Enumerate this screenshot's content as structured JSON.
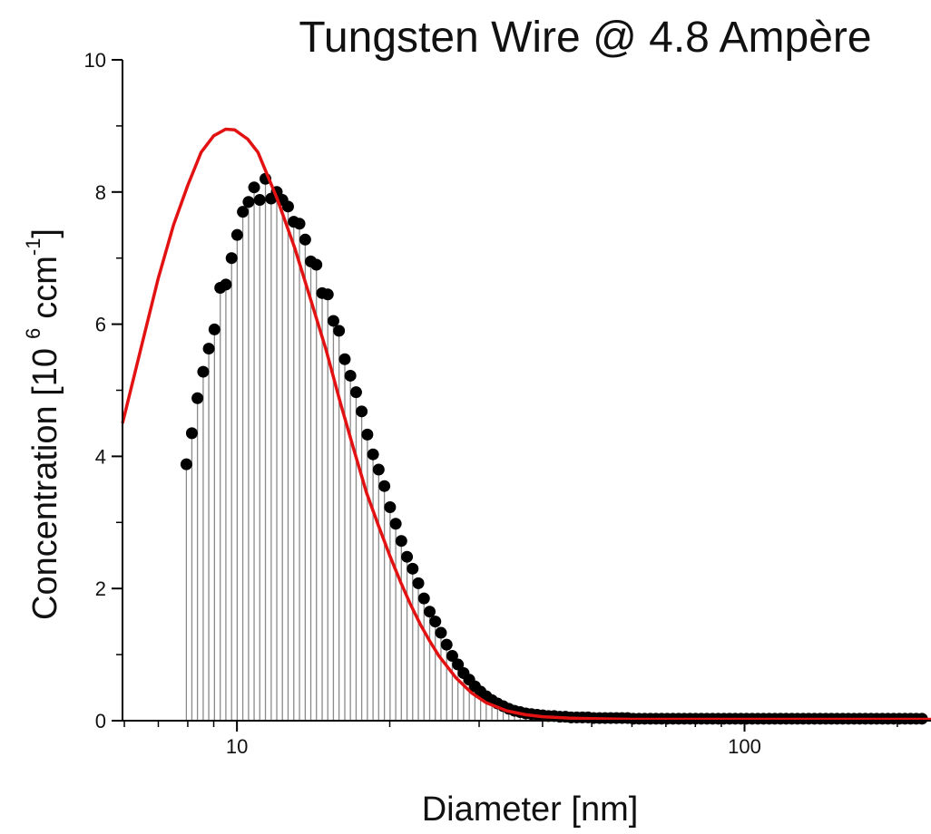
{
  "chart_data": {
    "type": "scatter",
    "title": "Tungsten Wire @ 4.8 Ampère",
    "xlabel": "Diameter [nm]",
    "ylabel": {
      "main": "Concentration [10",
      "exponent": "6",
      "unit": "ccm",
      "unit_exponent": "-1",
      "close": "]"
    },
    "x_scale": "log",
    "xlim": [
      5.95,
      233
    ],
    "ylim": [
      0,
      10
    ],
    "x_ticks": [
      10,
      100
    ],
    "x_tick_labels": [
      "10",
      "100"
    ],
    "y_ticks": [
      0,
      2,
      4,
      6,
      8,
      10
    ],
    "y_tick_labels": [
      "0",
      "2",
      "4",
      "6",
      "8",
      "10"
    ],
    "grid": false,
    "legend": "none",
    "colors": {
      "fit": "#e31212",
      "points": "#000000",
      "drop_lines": "#8a8a8a"
    },
    "series": [
      {
        "style": "scatter-with-drop-lines",
        "x": [
          7.95,
          8.15,
          8.36,
          8.58,
          8.8,
          9.03,
          9.27,
          9.51,
          9.76,
          10.01,
          10.27,
          10.54,
          10.81,
          11.09,
          11.38,
          11.68,
          11.98,
          12.29,
          12.61,
          12.94,
          13.28,
          13.63,
          13.98,
          14.34,
          14.72,
          15.1,
          15.49,
          15.89,
          16.31,
          16.73,
          17.17,
          17.61,
          18.07,
          18.54,
          19.02,
          19.52,
          20.03,
          20.55,
          21.08,
          21.63,
          22.19,
          22.77,
          23.36,
          23.97,
          24.59,
          25.23,
          25.89,
          26.56,
          27.25,
          27.96,
          28.69,
          29.43,
          30.2,
          30.98,
          31.79,
          32.62,
          33.46,
          34.33,
          35.23,
          36.14,
          37.08,
          38.05,
          39.04,
          40.05,
          41.09,
          42.16,
          43.26,
          44.38,
          45.54,
          46.72,
          47.93,
          49.18,
          50.46,
          51.77,
          53.12,
          54.5,
          55.92,
          57.37,
          58.86,
          60.39,
          61.96,
          63.57,
          65.23,
          66.92,
          68.66,
          70.45,
          72.28,
          74.16,
          76.09,
          78.07,
          80.1,
          82.18,
          84.32,
          86.51,
          88.76,
          91.07,
          93.44,
          95.87,
          98.36,
          100.92,
          103.54,
          106.23,
          108.99,
          111.83,
          114.73,
          117.72,
          120.78,
          123.92,
          127.14,
          130.45,
          133.84,
          137.32,
          140.89,
          144.56,
          148.31,
          152.17,
          156.13,
          160.19,
          164.35,
          168.62,
          173.01,
          177.51,
          182.12,
          186.86,
          191.71,
          196.7,
          201.81,
          207.06,
          212.44,
          217.97,
          223.64
        ],
        "y": [
          3.88,
          4.35,
          4.88,
          5.28,
          5.63,
          5.92,
          6.55,
          6.6,
          7.0,
          7.35,
          7.7,
          7.85,
          8.07,
          7.88,
          8.2,
          7.9,
          8.0,
          7.88,
          7.78,
          7.55,
          7.52,
          7.28,
          6.95,
          6.9,
          6.47,
          6.45,
          6.05,
          5.9,
          5.47,
          5.22,
          4.97,
          4.68,
          4.33,
          4.03,
          3.8,
          3.55,
          3.23,
          2.98,
          2.72,
          2.48,
          2.3,
          2.08,
          1.85,
          1.65,
          1.5,
          1.33,
          1.15,
          0.98,
          0.85,
          0.72,
          0.62,
          0.52,
          0.44,
          0.37,
          0.31,
          0.26,
          0.22,
          0.18,
          0.15,
          0.13,
          0.11,
          0.1,
          0.09,
          0.08,
          0.07,
          0.07,
          0.06,
          0.06,
          0.05,
          0.05,
          0.05,
          0.05,
          0.04,
          0.04,
          0.04,
          0.04,
          0.04,
          0.04,
          0.04,
          0.03,
          0.03,
          0.03,
          0.03,
          0.03,
          0.03,
          0.03,
          0.03,
          0.03,
          0.03,
          0.03,
          0.03,
          0.03,
          0.03,
          0.03,
          0.03,
          0.03,
          0.03,
          0.03,
          0.03,
          0.03,
          0.03,
          0.03,
          0.03,
          0.03,
          0.03,
          0.03,
          0.03,
          0.03,
          0.03,
          0.03,
          0.03,
          0.03,
          0.03,
          0.03,
          0.03,
          0.03,
          0.03,
          0.03,
          0.03,
          0.03,
          0.03,
          0.03,
          0.03,
          0.03,
          0.03,
          0.03,
          0.03,
          0.03,
          0.03,
          0.03,
          0.03
        ]
      },
      {
        "style": "line",
        "x": [
          5.95,
          6.5,
          7.0,
          7.5,
          8.0,
          8.5,
          9.0,
          9.5,
          9.9,
          10.5,
          11.0,
          12.0,
          13.0,
          14.0,
          15.0,
          16.0,
          17.0,
          18.0,
          19.0,
          20.0,
          21.0,
          22.0,
          23.0,
          24.0,
          25.0,
          27.0,
          29.0,
          31.0,
          34.0,
          37.0,
          40.0,
          45.0,
          50.0,
          60.0,
          70.0,
          80.0,
          100.0,
          130.0,
          170.0,
          233.0
        ],
        "y": [
          4.5,
          5.7,
          6.7,
          7.5,
          8.1,
          8.6,
          8.85,
          8.95,
          8.94,
          8.8,
          8.6,
          7.9,
          7.15,
          6.35,
          5.6,
          4.8,
          4.1,
          3.45,
          2.95,
          2.5,
          2.1,
          1.75,
          1.45,
          1.2,
          0.98,
          0.65,
          0.42,
          0.27,
          0.15,
          0.09,
          0.06,
          0.04,
          0.03,
          0.02,
          0.02,
          0.02,
          0.02,
          0.02,
          0.02,
          0.02
        ]
      }
    ]
  }
}
